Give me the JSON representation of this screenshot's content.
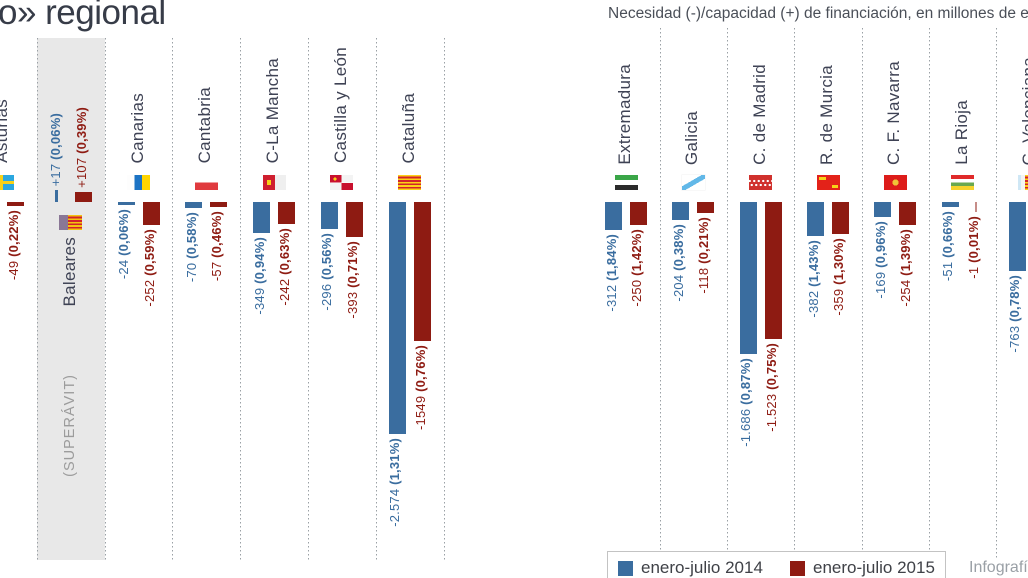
{
  "page": {
    "background": "#ffffff"
  },
  "header": {
    "title": "o» regional"
  },
  "right_header": {
    "subtitle": "Necesidad (-)/capacidad (+) de financiación, en millones de euros"
  },
  "credit": "Infografía",
  "colors": {
    "bar_2014": "#3a6d9f",
    "bar_2015": "#8e1b12",
    "highlight_band": "#e8e8e8",
    "separator": "#9aa0a5",
    "region_label": "#3e4254",
    "muted_text": "#9c9c9c"
  },
  "legend": {
    "items": [
      {
        "label": "enero-julio 2014",
        "color": "#3a6d9f"
      },
      {
        "label": "enero-julio 2015",
        "color": "#8e1b12"
      }
    ]
  },
  "chart_data": [
    {
      "type": "bar",
      "panel": "left",
      "unit": "millones de euros",
      "series_names": [
        "enero-julio 2014",
        "enero-julio 2015"
      ],
      "regions": [
        {
          "name": "Asturias",
          "flag": "asturias",
          "bars": [
            {
              "series": "enero-julio 2015",
              "value": -49,
              "num": "-49 ",
              "pct": "(0,22%)"
            }
          ]
        },
        {
          "name": "Baleares",
          "flag": "baleares",
          "highlight": true,
          "highlight_label": "(SUPERÁVIT)",
          "bars": [
            {
              "series": "enero-julio 2014",
              "value": 17,
              "num": "+17 ",
              "pct": "(0,06%)"
            },
            {
              "series": "enero-julio 2015",
              "value": 107,
              "num": "+107 ",
              "pct": "(0,39%)"
            }
          ]
        },
        {
          "name": "Canarias",
          "flag": "canarias",
          "bars": [
            {
              "series": "enero-julio 2014",
              "value": -24,
              "num": "-24 ",
              "pct": "(0,06%)"
            },
            {
              "series": "enero-julio 2015",
              "value": -252,
              "num": "-252 ",
              "pct": "(0,59%)"
            }
          ]
        },
        {
          "name": "Cantabria",
          "flag": "cantabria",
          "bars": [
            {
              "series": "enero-julio 2014",
              "value": -70,
              "num": "-70 ",
              "pct": "(0,58%)"
            },
            {
              "series": "enero-julio 2015",
              "value": -57,
              "num": "-57 ",
              "pct": "(0,46%)"
            }
          ]
        },
        {
          "name": "C-La Mancha",
          "flag": "clm",
          "bars": [
            {
              "series": "enero-julio 2014",
              "value": -349,
              "num": "-349 ",
              "pct": "(0,94%)"
            },
            {
              "series": "enero-julio 2015",
              "value": -242,
              "num": "-242 ",
              "pct": "(0,63%)"
            }
          ]
        },
        {
          "name": "Castilla y León",
          "flag": "cyl",
          "bars": [
            {
              "series": "enero-julio 2014",
              "value": -296,
              "num": "-296 ",
              "pct": "(0,56%)"
            },
            {
              "series": "enero-julio 2015",
              "value": -393,
              "num": "-393 ",
              "pct": "(0,71%)"
            }
          ]
        },
        {
          "name": "Cataluña",
          "flag": "cataluna",
          "bars": [
            {
              "series": "enero-julio 2014",
              "value": -2574,
              "num": "-2.574 ",
              "pct": "(1,31%)"
            },
            {
              "series": "enero-julio 2015",
              "value": -1549,
              "num": "-1549 ",
              "pct": "(0,76%)"
            }
          ]
        }
      ]
    },
    {
      "type": "bar",
      "panel": "right",
      "unit": "millones de euros",
      "series_names": [
        "enero-julio 2014",
        "enero-julio 2015"
      ],
      "regions": [
        {
          "name": "Extremadura",
          "flag": "extremadura",
          "bars": [
            {
              "series": "enero-julio 2014",
              "value": -312,
              "num": "-312 ",
              "pct": "(1,84%)"
            },
            {
              "series": "enero-julio 2015",
              "value": -250,
              "num": "-250 ",
              "pct": "(1,42%)"
            }
          ]
        },
        {
          "name": "Galicia",
          "flag": "galicia",
          "bars": [
            {
              "series": "enero-julio 2014",
              "value": -204,
              "num": "-204 ",
              "pct": "(0,38%)"
            },
            {
              "series": "enero-julio 2015",
              "value": -118,
              "num": "-118 ",
              "pct": "(0,21%)"
            }
          ]
        },
        {
          "name": "C. de Madrid",
          "flag": "madrid",
          "bars": [
            {
              "series": "enero-julio 2014",
              "value": -1686,
              "num": "-1.686 ",
              "pct": "(0,87%)"
            },
            {
              "series": "enero-julio 2015",
              "value": -1523,
              "num": "-1.523 ",
              "pct": "(0,75%)"
            }
          ]
        },
        {
          "name": "R. de Murcia",
          "flag": "murcia",
          "bars": [
            {
              "series": "enero-julio 2014",
              "value": -382,
              "num": "-382 ",
              "pct": "(1,43%)"
            },
            {
              "series": "enero-julio 2015",
              "value": -359,
              "num": "-359 ",
              "pct": "(1,30%)"
            }
          ]
        },
        {
          "name": "C. F. Navarra",
          "flag": "navarra",
          "bars": [
            {
              "series": "enero-julio 2014",
              "value": -169,
              "num": "-169 ",
              "pct": "(0,96%)"
            },
            {
              "series": "enero-julio 2015",
              "value": -254,
              "num": "-254 ",
              "pct": "(1,39%)"
            }
          ]
        },
        {
          "name": "La Rioja",
          "flag": "rioja",
          "bars": [
            {
              "series": "enero-julio 2014",
              "value": -51,
              "num": "-51 ",
              "pct": "(0,66%)"
            },
            {
              "series": "enero-julio 2015",
              "value": -1,
              "num": "-1 ",
              "pct": "(0,01%)"
            }
          ]
        },
        {
          "name": "C. Valenciana",
          "flag": "valenciana",
          "bars": [
            {
              "series": "enero-julio 2014",
              "value": -763,
              "num": "-763 ",
              "pct": "(0,78%)"
            }
          ]
        }
      ]
    }
  ]
}
